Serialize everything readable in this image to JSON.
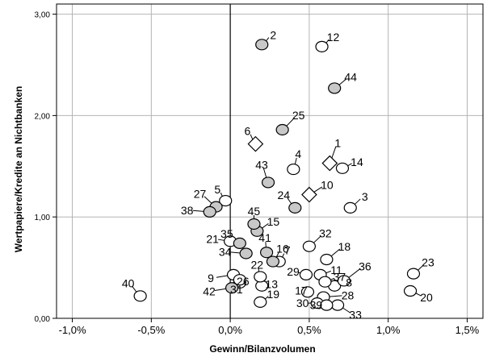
{
  "chart_data": {
    "type": "scatter",
    "xlabel": "Gewinn/Bilanzvolumen",
    "ylabel": "Wertpapiere/Kredite an Nichtbanken",
    "xlim": [
      -1.1,
      1.6
    ],
    "ylim": [
      0,
      3.1
    ],
    "grid": true,
    "x_ticks": [
      -1.0,
      -0.5,
      0.0,
      0.5,
      1.0,
      1.5
    ],
    "x_tick_labels": [
      "-1,0%",
      "-0,5%",
      "0,0%",
      "0,5%",
      "1,0%",
      "1,5%"
    ],
    "y_ticks": [
      0,
      1,
      2,
      3
    ],
    "y_tick_labels": [
      "0,00",
      "1,00",
      "2,00",
      "3,00"
    ],
    "marker_colors": {
      "filled": "#c8c8c8",
      "open": "#ffffff"
    },
    "points": [
      {
        "label": "1",
        "x": 0.63,
        "y": 1.53,
        "marker": "diamond"
      },
      {
        "label": "2",
        "x": 0.2,
        "y": 2.7,
        "marker": "filled"
      },
      {
        "label": "3",
        "x": 0.76,
        "y": 1.09,
        "marker": "open"
      },
      {
        "label": "4",
        "x": 0.4,
        "y": 1.47,
        "marker": "open"
      },
      {
        "label": "5",
        "x": -0.03,
        "y": 1.16,
        "marker": "open"
      },
      {
        "label": "6",
        "x": 0.16,
        "y": 1.72,
        "marker": "diamond"
      },
      {
        "label": "7",
        "x": 0.31,
        "y": 0.56,
        "marker": "open"
      },
      {
        "label": "8",
        "x": 0.66,
        "y": 0.32,
        "marker": "open"
      },
      {
        "label": "9",
        "x": 0.02,
        "y": 0.43,
        "marker": "open"
      },
      {
        "label": "10",
        "x": 0.5,
        "y": 1.22,
        "marker": "diamond"
      },
      {
        "label": "11",
        "x": 0.57,
        "y": 0.43,
        "marker": "open"
      },
      {
        "label": "12",
        "x": 0.58,
        "y": 2.68,
        "marker": "open"
      },
      {
        "label": "13",
        "x": 0.2,
        "y": 0.32,
        "marker": "open"
      },
      {
        "label": "14",
        "x": 0.71,
        "y": 1.48,
        "marker": "open"
      },
      {
        "label": "15",
        "x": 0.17,
        "y": 0.86,
        "marker": "filled"
      },
      {
        "label": "16",
        "x": 0.27,
        "y": 0.56,
        "marker": "filled"
      },
      {
        "label": "17",
        "x": 0.49,
        "y": 0.26,
        "marker": "open"
      },
      {
        "label": "18",
        "x": 0.61,
        "y": 0.58,
        "marker": "open"
      },
      {
        "label": "19",
        "x": 0.19,
        "y": 0.16,
        "marker": "open"
      },
      {
        "label": "20",
        "x": 1.14,
        "y": 0.27,
        "marker": "open"
      },
      {
        "label": "21",
        "x": 0.0,
        "y": 0.76,
        "marker": "open"
      },
      {
        "label": "22",
        "x": 0.19,
        "y": 0.41,
        "marker": "open"
      },
      {
        "label": "23",
        "x": 1.16,
        "y": 0.44,
        "marker": "open"
      },
      {
        "label": "24",
        "x": 0.41,
        "y": 1.09,
        "marker": "filled"
      },
      {
        "label": "25",
        "x": 0.33,
        "y": 1.86,
        "marker": "filled"
      },
      {
        "label": "26",
        "x": 0.06,
        "y": 0.35,
        "marker": "open"
      },
      {
        "label": "27",
        "x": -0.09,
        "y": 1.1,
        "marker": "filled"
      },
      {
        "label": "28",
        "x": 0.59,
        "y": 0.21,
        "marker": "open"
      },
      {
        "label": "29",
        "x": 0.48,
        "y": 0.43,
        "marker": "open"
      },
      {
        "label": "30",
        "x": 0.55,
        "y": 0.15,
        "marker": "open"
      },
      {
        "label": "31",
        "x": 0.06,
        "y": 0.38,
        "marker": "open"
      },
      {
        "label": "32",
        "x": 0.5,
        "y": 0.71,
        "marker": "open"
      },
      {
        "label": "33",
        "x": 0.68,
        "y": 0.13,
        "marker": "open"
      },
      {
        "label": "34",
        "x": 0.1,
        "y": 0.64,
        "marker": "filled"
      },
      {
        "label": "35",
        "x": 0.06,
        "y": 0.74,
        "marker": "filled"
      },
      {
        "label": "36",
        "x": 0.72,
        "y": 0.37,
        "marker": "open"
      },
      {
        "label": "37",
        "x": 0.6,
        "y": 0.36,
        "marker": "open"
      },
      {
        "label": "38",
        "x": -0.13,
        "y": 1.05,
        "marker": "filled"
      },
      {
        "label": "39",
        "x": 0.61,
        "y": 0.13,
        "marker": "open"
      },
      {
        "label": "40",
        "x": -0.57,
        "y": 0.22,
        "marker": "open"
      },
      {
        "label": "41",
        "x": 0.23,
        "y": 0.65,
        "marker": "filled"
      },
      {
        "label": "42",
        "x": 0.01,
        "y": 0.3,
        "marker": "filled"
      },
      {
        "label": "43",
        "x": 0.24,
        "y": 1.34,
        "marker": "filled"
      },
      {
        "label": "44",
        "x": 0.66,
        "y": 2.27,
        "marker": "filled"
      },
      {
        "label": "45",
        "x": 0.15,
        "y": 0.93,
        "marker": "filled"
      }
    ]
  }
}
